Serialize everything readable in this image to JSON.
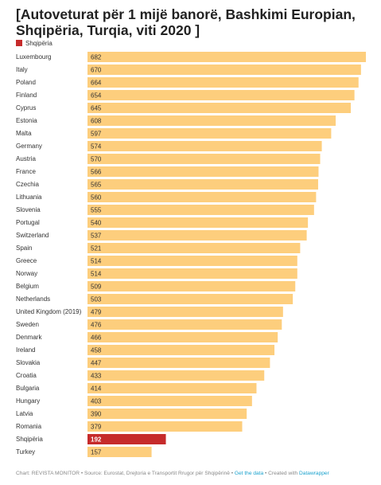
{
  "title": "[Autoveturat për 1 mijë banorë, Bashkimi Europian, Shqipëria, Turqia, viti 2020 ]",
  "legend": {
    "label": "Shqipëria",
    "color": "#c62b2b"
  },
  "colors": {
    "bar": "#fdce7d",
    "highlight": "#c62b2b",
    "value_text_dark": "#333333",
    "value_text_light": "#ffffff"
  },
  "chart_data": {
    "type": "bar",
    "orientation": "horizontal",
    "categories": [
      "Luxembourg",
      "Italy",
      "Poland",
      "Finland",
      "Cyprus",
      "Estonia",
      "Malta",
      "Germany",
      "Austria",
      "France",
      "Czechia",
      "Lithuania",
      "Slovenia",
      "Portugal",
      "Switzerland",
      "Spain",
      "Greece",
      "Norway",
      "Belgium",
      "Netherlands",
      "United Kingdom (2019)",
      "Sweden",
      "Denmark",
      "Ireland",
      "Slovakia",
      "Croatia",
      "Bulgaria",
      "Hungary",
      "Latvia",
      "Romania",
      "Shqipëria",
      "Turkey"
    ],
    "values": [
      682,
      670,
      664,
      654,
      645,
      608,
      597,
      574,
      570,
      566,
      565,
      560,
      555,
      540,
      537,
      521,
      514,
      514,
      509,
      503,
      479,
      476,
      466,
      458,
      447,
      433,
      414,
      403,
      390,
      379,
      192,
      157
    ],
    "highlight": [
      "Shqipëria"
    ],
    "xlim": [
      0,
      682
    ]
  },
  "footer": {
    "chart_credit": "Chart: REVISTA MONITOR",
    "source": "Source: Eurostat, Drejtoria e Transportit Rrugor për Shqipërinë",
    "get_data": "Get the data",
    "created_with": "Created with",
    "tool": "Datawrapper",
    "sep": " • "
  }
}
